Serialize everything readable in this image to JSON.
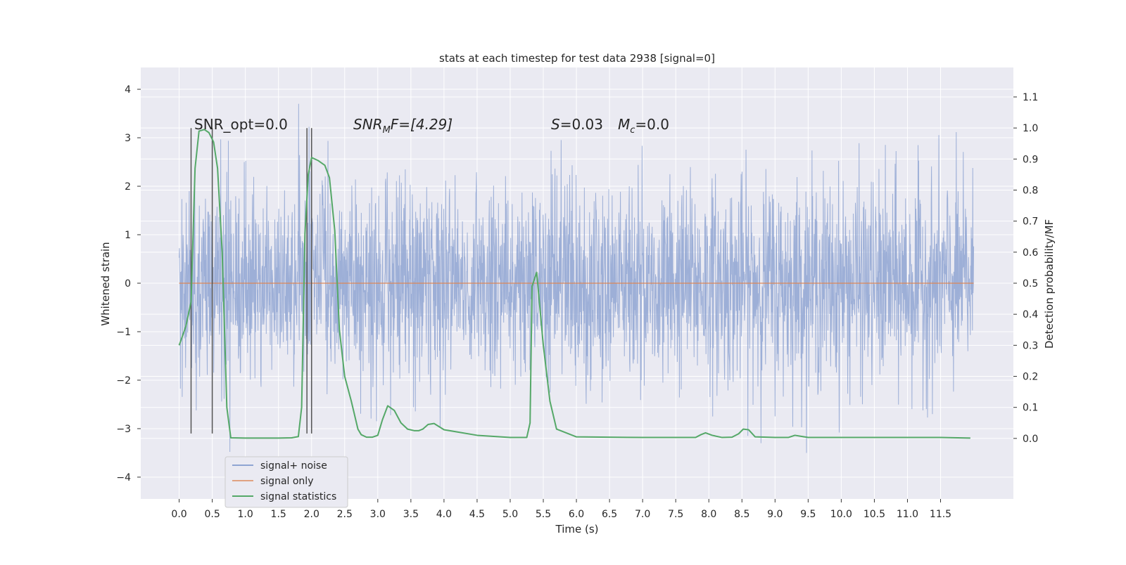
{
  "chart_data": {
    "type": "line",
    "title": "stats at each timestep for test data 2938 [signal=0]",
    "xlabel": "Time (s)",
    "ylabel": "Whitened strain",
    "y2label": "Detection probability/MF",
    "xlim": [
      -0.58,
      12.6
    ],
    "ylim": [
      -4.45,
      4.45
    ],
    "y2lim": [
      -0.195,
      1.195
    ],
    "xticks": [
      0.0,
      0.5,
      1.0,
      1.5,
      2.0,
      2.5,
      3.0,
      3.5,
      4.0,
      4.5,
      5.0,
      5.5,
      6.0,
      6.5,
      7.0,
      7.5,
      8.0,
      8.5,
      9.0,
      9.5,
      10.0,
      10.5,
      11.0,
      11.5
    ],
    "xtick_labels": [
      "0.0",
      "0.5",
      "1.0",
      "1.5",
      "2.0",
      "2.5",
      "3.0",
      "3.5",
      "4.0",
      "4.5",
      "5.0",
      "5.5",
      "6.0",
      "6.5",
      "7.0",
      "7.5",
      "8.0",
      "8.5",
      "9.0",
      "9.5",
      "10.0",
      "10.5",
      "11.0",
      "11.5"
    ],
    "yticks": [
      -4,
      -3,
      -2,
      -1,
      0,
      1,
      2,
      3,
      4
    ],
    "ytick_labels": [
      "−4",
      "−3",
      "−2",
      "−1",
      "0",
      "1",
      "2",
      "3",
      "4"
    ],
    "y2ticks": [
      0.0,
      0.1,
      0.2,
      0.3,
      0.4,
      0.5,
      0.6,
      0.7,
      0.8,
      0.9,
      1.0,
      1.1
    ],
    "y2tick_labels": [
      "0.0",
      "0.1",
      "0.2",
      "0.3",
      "0.4",
      "0.5",
      "0.6",
      "0.7",
      "0.8",
      "0.9",
      "1.0",
      "1.1"
    ],
    "grid": true,
    "legend_position": "bottom-left",
    "annotations": {
      "snr_opt": "SNR_opt=0.0",
      "snr_mf_italic": "SNR",
      "snr_mf_sub": "M",
      "snr_mf_rest": "F=[4.29]",
      "s_italic": "S",
      "s_rest": "=0.03",
      "mc_italic": "M",
      "mc_sub": "c",
      "mc_rest": "=0.0"
    },
    "series": [
      {
        "name": "signal+ noise",
        "color": "#8fa5d2",
        "x_range": [
          0.0,
          12.0
        ],
        "y_envelope": [
          -3.5,
          4.1
        ]
      },
      {
        "name": "signal only",
        "color": "#dd8452",
        "x": [
          0.0,
          12.0
        ],
        "y": [
          0.0,
          0.0
        ]
      },
      {
        "name": "signal statistics",
        "color": "#55a868",
        "axis": "right",
        "x": [
          0.0,
          0.1,
          0.18,
          0.24,
          0.3,
          0.38,
          0.45,
          0.52,
          0.58,
          0.65,
          0.72,
          0.78,
          1.0,
          1.5,
          1.7,
          1.8,
          1.85,
          1.9,
          1.95,
          2.0,
          2.1,
          2.2,
          2.27,
          2.35,
          2.42,
          2.5,
          2.6,
          2.7,
          2.75,
          2.83,
          2.92,
          3.0,
          3.07,
          3.15,
          3.25,
          3.35,
          3.45,
          3.55,
          3.62,
          3.68,
          3.76,
          3.85,
          4.0,
          4.5,
          5.0,
          5.15,
          5.2,
          5.25,
          5.3,
          5.33,
          5.4,
          5.5,
          5.6,
          5.7,
          6.0,
          6.5,
          7.0,
          7.7,
          7.8,
          7.88,
          7.95,
          8.05,
          8.2,
          8.35,
          8.45,
          8.52,
          8.6,
          8.7,
          9.0,
          9.1,
          9.2,
          9.3,
          9.5,
          10.0,
          11.0,
          11.3,
          11.5,
          11.95
        ],
        "y": [
          0.3,
          0.36,
          0.44,
          0.87,
          0.99,
          0.995,
          0.985,
          0.955,
          0.87,
          0.6,
          0.1,
          0.002,
          0.001,
          0.001,
          0.002,
          0.006,
          0.1,
          0.66,
          0.85,
          0.905,
          0.895,
          0.88,
          0.84,
          0.67,
          0.35,
          0.2,
          0.12,
          0.03,
          0.012,
          0.004,
          0.004,
          0.01,
          0.06,
          0.105,
          0.09,
          0.05,
          0.03,
          0.025,
          0.025,
          0.03,
          0.045,
          0.048,
          0.028,
          0.01,
          0.003,
          0.003,
          0.003,
          0.003,
          0.05,
          0.49,
          0.535,
          0.3,
          0.12,
          0.03,
          0.005,
          0.004,
          0.003,
          0.003,
          0.003,
          0.012,
          0.018,
          0.01,
          0.003,
          0.004,
          0.015,
          0.03,
          0.028,
          0.005,
          0.003,
          0.003,
          0.003,
          0.01,
          0.003,
          0.003,
          0.003,
          0.003,
          0.003,
          0.001
        ]
      }
    ],
    "vertical_markers": {
      "x": [
        0.18,
        0.5,
        1.93,
        2.0
      ],
      "y_top": 3.2,
      "y_bottom": -3.1
    },
    "colors": {
      "plot_bg": "#eaeaf2",
      "grid": "#ffffff",
      "marker": "#555555"
    }
  }
}
